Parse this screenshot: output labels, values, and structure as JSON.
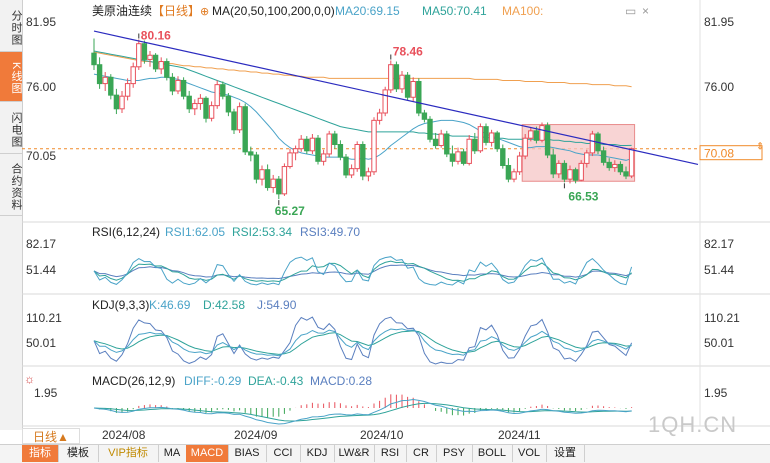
{
  "sidebar": {
    "tabs": [
      {
        "label": "分时图",
        "active": false
      },
      {
        "label": "K线图",
        "active": true
      },
      {
        "label": "闪电图",
        "active": false
      },
      {
        "label": "合约资料",
        "active": false
      }
    ]
  },
  "period_button": "日线▲",
  "watermark": "1QH.CN",
  "bottom_tabs": [
    {
      "label": "指标",
      "active": true
    },
    {
      "label": "模板"
    },
    {
      "label": "VIP指标",
      "vip": true
    },
    {
      "label": "MA"
    },
    {
      "label": "MACD",
      "active": true
    },
    {
      "label": "BIAS"
    },
    {
      "label": "CCI"
    },
    {
      "label": "KDJ"
    },
    {
      "label": "LW&R"
    },
    {
      "label": "RSI"
    },
    {
      "label": "CR"
    },
    {
      "label": "PSY"
    },
    {
      "label": "BOLL"
    },
    {
      "label": "VOL"
    },
    {
      "label": "设置"
    }
  ],
  "colors": {
    "up": "#e8505b",
    "down": "#3aa655",
    "ma20": "#4aa3c8",
    "ma50": "#2fa39a",
    "ma100": "#f0a050",
    "trendline": "#2b2bbf",
    "price_line": "#f08a2a",
    "box_fill": "#f6c6c6",
    "box_stroke": "#e88a8a"
  },
  "main_panel": {
    "title": "美原油连续",
    "period": "【日线】",
    "ma_label": "MA(20,50,100,200,0,0)",
    "ma20_label": "MA20:69.15",
    "ma50_label": "MA50:70.41",
    "ma100_label": "MA100:",
    "y_ticks": [
      "81.95",
      "76.00",
      "70.05"
    ],
    "current_price": "70.08",
    "annot_high": "80.16",
    "annot_peak": "78.46",
    "annot_low1": "65.27",
    "annot_low2": "66.53"
  },
  "rsi_panel": {
    "label": "RSI(6,12,24)",
    "rsi1": "RSI1:62.05",
    "rsi2": "RSI2:53.34",
    "rsi3": "RSI3:49.70",
    "y_ticks": [
      "82.17",
      "51.44"
    ]
  },
  "kdj_panel": {
    "label": "KDJ(9,3,3)",
    "k": "K:46.69",
    "d": "D:42.58",
    "j": "J:54.90",
    "y_ticks": [
      "110.21",
      "50.01"
    ]
  },
  "macd_panel": {
    "label": "MACD(26,12,9)",
    "diff": "DIFF:-0.29",
    "dea": "DEA:-0.43",
    "macd": "MACD:0.28",
    "y_ticks": [
      "1.95"
    ]
  },
  "x_axis": {
    "labels": [
      "2024/08",
      "2024/09",
      "2024/10",
      "2024/11"
    ]
  },
  "chart_data": {
    "type": "candlestick",
    "title": "美原油连续",
    "ylim": [
      63.5,
      83.5
    ],
    "candles": [
      [
        79.2,
        80.6,
        77.6,
        78.1
      ],
      [
        78.1,
        78.8,
        75.8,
        76.3
      ],
      [
        76.3,
        77.4,
        75.6,
        76.9
      ],
      [
        76.9,
        77.2,
        74.8,
        75.2
      ],
      [
        75.2,
        75.8,
        73.4,
        73.9
      ],
      [
        73.9,
        75.6,
        73.5,
        75.1
      ],
      [
        75.1,
        76.8,
        74.7,
        76.3
      ],
      [
        76.3,
        78.3,
        75.9,
        77.9
      ],
      [
        77.9,
        80.5,
        77.6,
        80.1
      ],
      [
        80.1,
        80.4,
        78.2,
        78.6
      ],
      [
        78.6,
        79.4,
        77.9,
        79.0
      ],
      [
        79.0,
        79.2,
        77.4,
        77.7
      ],
      [
        77.7,
        78.8,
        77.2,
        78.4
      ],
      [
        78.4,
        78.7,
        76.6,
        76.9
      ],
      [
        76.9,
        77.3,
        75.2,
        75.6
      ],
      [
        75.6,
        77.0,
        75.3,
        76.6
      ],
      [
        76.6,
        76.9,
        74.8,
        75.1
      ],
      [
        75.1,
        75.6,
        73.5,
        73.9
      ],
      [
        73.9,
        74.8,
        73.3,
        74.4
      ],
      [
        74.4,
        75.3,
        73.8,
        74.9
      ],
      [
        74.9,
        75.1,
        72.6,
        73.0
      ],
      [
        73.0,
        74.6,
        72.7,
        74.2
      ],
      [
        74.2,
        76.6,
        73.9,
        76.2
      ],
      [
        76.2,
        76.5,
        74.8,
        75.1
      ],
      [
        75.1,
        75.4,
        73.2,
        73.6
      ],
      [
        73.6,
        73.9,
        71.5,
        71.9
      ],
      [
        71.9,
        74.5,
        71.6,
        74.1
      ],
      [
        74.1,
        74.4,
        69.5,
        69.8
      ],
      [
        69.8,
        70.3,
        68.9,
        69.5
      ],
      [
        69.5,
        69.8,
        66.8,
        67.2
      ],
      [
        67.2,
        68.5,
        66.6,
        68.1
      ],
      [
        68.1,
        68.6,
        66.1,
        66.4
      ],
      [
        66.4,
        67.6,
        65.9,
        67.2
      ],
      [
        67.2,
        67.5,
        65.3,
        65.8
      ],
      [
        65.8,
        68.7,
        65.6,
        68.4
      ],
      [
        68.4,
        70.1,
        68.2,
        69.7
      ],
      [
        69.7,
        70.4,
        69.0,
        70.1
      ],
      [
        70.1,
        71.4,
        69.8,
        71.0
      ],
      [
        71.0,
        71.3,
        69.6,
        69.9
      ],
      [
        69.9,
        71.5,
        69.6,
        71.1
      ],
      [
        71.1,
        71.4,
        68.6,
        68.9
      ],
      [
        68.9,
        70.0,
        68.5,
        69.6
      ],
      [
        69.6,
        71.8,
        69.3,
        71.5
      ],
      [
        71.5,
        71.8,
        70.1,
        70.5
      ],
      [
        70.5,
        70.9,
        69.0,
        69.3
      ],
      [
        69.3,
        69.6,
        67.3,
        67.6
      ],
      [
        67.6,
        68.6,
        67.3,
        68.2
      ],
      [
        68.2,
        70.8,
        67.9,
        70.5
      ],
      [
        70.5,
        70.8,
        67.1,
        67.5
      ],
      [
        67.5,
        68.3,
        67.0,
        67.9
      ],
      [
        67.9,
        73.1,
        67.6,
        72.8
      ],
      [
        72.8,
        73.9,
        72.4,
        73.5
      ],
      [
        73.5,
        76.0,
        73.2,
        75.7
      ],
      [
        75.7,
        78.5,
        75.4,
        78.1
      ],
      [
        78.1,
        78.4,
        75.5,
        75.8
      ],
      [
        75.8,
        77.5,
        75.4,
        77.1
      ],
      [
        77.1,
        77.4,
        74.7,
        75.0
      ],
      [
        75.0,
        76.9,
        74.6,
        76.5
      ],
      [
        76.5,
        76.8,
        73.2,
        73.5
      ],
      [
        73.5,
        73.8,
        72.6,
        72.9
      ],
      [
        72.9,
        73.2,
        70.7,
        71.0
      ],
      [
        71.0,
        71.6,
        70.1,
        70.4
      ],
      [
        70.4,
        71.9,
        70.2,
        71.5
      ],
      [
        71.5,
        71.8,
        69.3,
        69.6
      ],
      [
        69.6,
        70.4,
        68.4,
        68.9
      ],
      [
        68.9,
        70.2,
        68.6,
        69.8
      ],
      [
        69.8,
        70.1,
        68.5,
        68.7
      ],
      [
        68.7,
        71.4,
        68.5,
        71.0
      ],
      [
        71.0,
        71.6,
        69.6,
        69.9
      ],
      [
        69.9,
        72.5,
        69.7,
        72.2
      ],
      [
        72.2,
        72.5,
        70.4,
        70.7
      ],
      [
        70.7,
        71.9,
        70.3,
        71.6
      ],
      [
        71.6,
        71.8,
        69.8,
        70.1
      ],
      [
        70.1,
        70.5,
        68.2,
        68.5
      ],
      [
        68.5,
        69.2,
        66.9,
        67.2
      ],
      [
        67.2,
        68.2,
        66.9,
        67.9
      ],
      [
        67.9,
        69.8,
        67.6,
        69.4
      ],
      [
        69.4,
        71.5,
        69.1,
        71.1
      ],
      [
        71.1,
        72.1,
        70.8,
        71.8
      ],
      [
        71.8,
        72.2,
        70.6,
        70.9
      ],
      [
        70.9,
        72.6,
        70.7,
        72.3
      ],
      [
        72.3,
        72.6,
        69.2,
        69.5
      ],
      [
        69.5,
        70.1,
        67.3,
        67.7
      ],
      [
        67.7,
        69.0,
        67.3,
        68.7
      ],
      [
        68.7,
        69.0,
        66.9,
        67.2
      ],
      [
        67.2,
        68.5,
        66.8,
        68.1
      ],
      [
        68.1,
        68.3,
        66.8,
        67.1
      ],
      [
        67.1,
        69.0,
        67.0,
        68.7
      ],
      [
        68.7,
        70.0,
        68.3,
        69.7
      ],
      [
        69.7,
        71.8,
        69.4,
        71.5
      ],
      [
        71.5,
        71.7,
        69.6,
        69.9
      ],
      [
        69.9,
        70.3,
        68.5,
        68.8
      ],
      [
        68.8,
        69.2,
        68.0,
        68.3
      ],
      [
        68.3,
        69.0,
        67.9,
        68.6
      ],
      [
        68.6,
        68.9,
        67.6,
        67.9
      ],
      [
        67.9,
        68.4,
        67.2,
        67.5
      ],
      [
        67.5,
        70.2,
        67.3,
        70.1
      ]
    ],
    "ma20": [
      77.2,
      77.1,
      77.0,
      76.9,
      76.8,
      76.7,
      76.6,
      76.6,
      76.6,
      76.7,
      76.8,
      76.8,
      76.9,
      76.9,
      76.8,
      76.7,
      76.5,
      76.3,
      76.1,
      75.9,
      75.7,
      75.5,
      75.4,
      75.3,
      75.2,
      75.0,
      74.8,
      74.5,
      74.1,
      73.6,
      73.0,
      72.4,
      71.8,
      71.1,
      70.6,
      70.2,
      69.9,
      69.7,
      69.6,
      69.5,
      69.4,
      69.3,
      69.3,
      69.3,
      69.3,
      69.2,
      69.1,
      69.1,
      69.2,
      69.1,
      69.2,
      69.5,
      69.9,
      70.4,
      70.8,
      71.2,
      71.6,
      72.0,
      72.3,
      72.5,
      72.6,
      72.7,
      72.8,
      72.8,
      72.8,
      72.7,
      72.6,
      72.4,
      72.1,
      71.8,
      71.5,
      71.3,
      71.1,
      70.9,
      70.7,
      70.5,
      70.3,
      70.2,
      70.2,
      70.3,
      70.3,
      70.3,
      70.2,
      70.1,
      70.0,
      69.9,
      69.7,
      69.6,
      69.5,
      69.5,
      69.5,
      69.4,
      69.3,
      69.2,
      69.1,
      69.0,
      69.15
    ],
    "ma50": [
      79.4,
      79.3,
      79.2,
      79.1,
      79.0,
      78.9,
      78.8,
      78.7,
      78.6,
      78.5,
      78.4,
      78.3,
      78.2,
      78.1,
      78.0,
      77.9,
      77.8,
      77.6,
      77.4,
      77.2,
      77.0,
      76.8,
      76.6,
      76.4,
      76.2,
      76.0,
      75.8,
      75.6,
      75.4,
      75.2,
      75.0,
      74.8,
      74.6,
      74.4,
      74.2,
      74.0,
      73.8,
      73.6,
      73.4,
      73.2,
      73.0,
      72.8,
      72.6,
      72.4,
      72.2,
      72.1,
      72.0,
      71.9,
      71.8,
      71.7,
      71.7,
      71.7,
      71.7,
      71.7,
      71.7,
      71.7,
      71.7,
      71.7,
      71.6,
      71.6,
      71.5,
      71.5,
      71.4,
      71.4,
      71.3,
      71.3,
      71.3,
      71.3,
      71.2,
      71.2,
      71.2,
      71.1,
      71.1,
      71.1,
      71.0,
      71.0,
      71.0,
      71.0,
      71.0,
      71.0,
      71.0,
      71.0,
      70.9,
      70.9,
      70.8,
      70.8,
      70.7,
      70.7,
      70.6,
      70.6,
      70.6,
      70.5,
      70.5,
      70.5,
      70.4,
      70.4,
      70.41
    ],
    "ma100": [
      79.3,
      79.2,
      79.1,
      79.0,
      78.9,
      78.8,
      78.7,
      78.6,
      78.5,
      78.4,
      78.4,
      78.3,
      78.3,
      78.2,
      78.2,
      78.1,
      78.0,
      78.0,
      77.9,
      77.9,
      77.8,
      77.8,
      77.7,
      77.7,
      77.6,
      77.6,
      77.5,
      77.5,
      77.4,
      77.4,
      77.3,
      77.3,
      77.2,
      77.2,
      77.1,
      77.1,
      77.0,
      77.0,
      76.9,
      76.9,
      76.9,
      76.9,
      76.8,
      76.8,
      76.8,
      76.8,
      76.8,
      76.8,
      76.8,
      76.8,
      76.8,
      76.8,
      76.8,
      76.8,
      76.8,
      76.8,
      76.8,
      76.8,
      76.8,
      76.8,
      76.8,
      76.8,
      76.8,
      76.8,
      76.8,
      76.8,
      76.8,
      76.8,
      76.7,
      76.7,
      76.7,
      76.7,
      76.7,
      76.6,
      76.6,
      76.6,
      76.6,
      76.5,
      76.5,
      76.5,
      76.5,
      76.4,
      76.4,
      76.4,
      76.4,
      76.3,
      76.3,
      76.3,
      76.3,
      76.2,
      76.2,
      76.2,
      76.2,
      76.1,
      76.1,
      76.1,
      76.0
    ],
    "trendline": {
      "from": [
        11,
        81.3
      ],
      "to": [
        115,
        68.6
      ]
    },
    "highlight_box": {
      "from_index": 77,
      "to_index": 96,
      "y_top": 72.4,
      "y_bottom": 67.0
    },
    "rsi_range": [
      20,
      100
    ],
    "kdj_range": [
      -20,
      130
    ],
    "macd_range": [
      -2.6,
      2.6
    ]
  }
}
